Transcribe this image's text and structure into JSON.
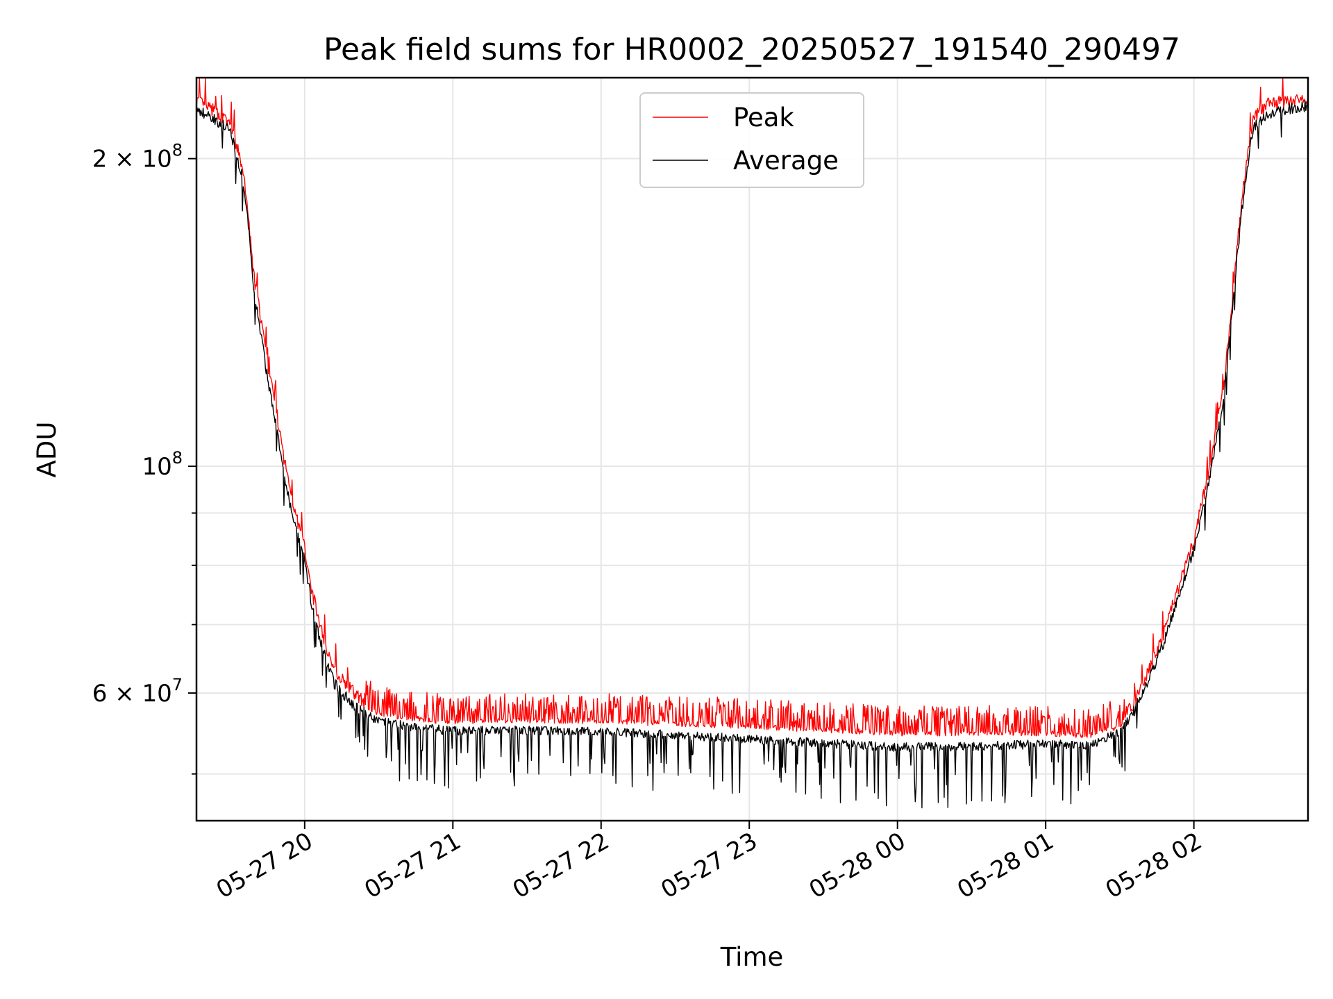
{
  "chart_data": {
    "type": "line",
    "title": "Peak field sums for HR0002_20250527_191540_290497",
    "xlabel": "Time",
    "ylabel": "ADU",
    "yscale": "log",
    "ylim": [
      45000000,
      240000000
    ],
    "xlim_hours": [
      -0.73,
      6.77
    ],
    "grid": true,
    "legend_position": "upper center",
    "x_tick_labels": [
      "05-27 20",
      "05-27 21",
      "05-27 22",
      "05-27 23",
      "05-28 00",
      "05-28 01",
      "05-28 02"
    ],
    "x_tick_hours": [
      0,
      1,
      2,
      3,
      4,
      5,
      6
    ],
    "x_axis_note": "x values are hours after 2025-05-27 20:00",
    "y_major_ticks": [
      {
        "value": 200000000,
        "mantissa": "2",
        "exponent": "8",
        "has_mantissa": true
      },
      {
        "value": 100000000,
        "mantissa": "",
        "exponent": "8",
        "has_mantissa": false
      },
      {
        "value": 60000000,
        "mantissa": "6",
        "exponent": "7",
        "has_mantissa": true
      }
    ],
    "y_minor_grid": [
      50000000,
      70000000,
      80000000,
      90000000
    ],
    "series": [
      {
        "name": "Peak",
        "color": "#ff0000",
        "x": [
          -0.73,
          -0.6,
          -0.5,
          -0.42,
          -0.38,
          -0.35,
          -0.3,
          -0.25,
          -0.2,
          -0.15,
          -0.1,
          -0.05,
          0.0,
          0.05,
          0.1,
          0.15,
          0.2,
          0.3,
          0.4,
          0.5,
          0.7,
          1.0,
          1.5,
          2.0,
          2.5,
          3.0,
          3.5,
          4.0,
          4.5,
          5.0,
          5.3,
          5.5,
          5.6,
          5.7,
          5.8,
          5.9,
          6.0,
          6.1,
          6.2,
          6.25,
          6.3,
          6.35,
          6.4,
          6.5,
          6.77
        ],
        "y": [
          227000000,
          221000000,
          215000000,
          195000000,
          175000000,
          155000000,
          140000000,
          125000000,
          115000000,
          103000000,
          95000000,
          88000000,
          83000000,
          75000000,
          70000000,
          66000000,
          63000000,
          60500000,
          58500000,
          57300000,
          56700000,
          56200000,
          56400000,
          56300000,
          56000000,
          55700000,
          55200000,
          54800000,
          54800000,
          54800000,
          54500000,
          55700000,
          58500000,
          63000000,
          68500000,
          76000000,
          84000000,
          98000000,
          118000000,
          140000000,
          168000000,
          195000000,
          218000000,
          225000000,
          228000000
        ]
      },
      {
        "name": "Average",
        "color": "#000000",
        "x": [
          -0.73,
          -0.6,
          -0.5,
          -0.42,
          -0.38,
          -0.35,
          -0.3,
          -0.25,
          -0.2,
          -0.15,
          -0.1,
          -0.05,
          0.0,
          0.05,
          0.1,
          0.15,
          0.2,
          0.3,
          0.4,
          0.5,
          0.7,
          1.0,
          1.5,
          2.0,
          2.5,
          3.0,
          3.5,
          4.0,
          4.5,
          5.0,
          5.3,
          5.5,
          5.6,
          5.7,
          5.8,
          5.9,
          6.0,
          6.1,
          6.2,
          6.25,
          6.3,
          6.35,
          6.4,
          6.5,
          6.77
        ],
        "y": [
          224000000,
          219000000,
          213000000,
          192000000,
          172000000,
          152000000,
          136000000,
          122000000,
          112000000,
          100000000,
          92000000,
          86000000,
          81000000,
          73000000,
          68000000,
          64500000,
          61500000,
          59200000,
          57500000,
          56400000,
          55800000,
          55200000,
          55300000,
          55100000,
          54700000,
          54200000,
          53700000,
          53200000,
          53300000,
          53600000,
          53500000,
          55000000,
          57800000,
          62200000,
          67500000,
          75000000,
          83000000,
          96500000,
          116000000,
          138000000,
          165000000,
          192000000,
          215000000,
          222000000,
          226000000
        ]
      }
    ]
  }
}
